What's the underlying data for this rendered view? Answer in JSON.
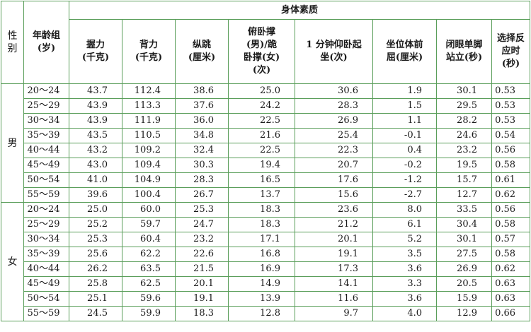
{
  "table": {
    "group_header": "身体素质",
    "sex_header": "性\n别",
    "age_header": "年龄组\n(岁)",
    "columns": [
      "握力\n(千克)",
      "背力\n(千克)",
      "纵跳\n(厘米)",
      "俯卧撑\n(男)/跪\n卧撑(女)\n(次)",
      "1 分钟仰卧起\n坐(次)",
      "坐位体前\n屈(厘米)",
      "闭眼单脚\n站立(秒)",
      "选择反\n应时\n(秒)"
    ],
    "groups": [
      {
        "sex": "男",
        "rows": [
          {
            "age": "20～24",
            "values": [
              "43.7",
              "112.4",
              "38.6",
              "25.0",
              "30.6",
              "1.9",
              "30.1",
              "0.53"
            ]
          },
          {
            "age": "25～29",
            "values": [
              "43.9",
              "113.3",
              "37.6",
              "24.2",
              "28.3",
              "1.5",
              "29.5",
              "0.53"
            ]
          },
          {
            "age": "30～34",
            "values": [
              "43.9",
              "111.9",
              "36.0",
              "22.5",
              "26.9",
              "1.1",
              "28.2",
              "0.53"
            ]
          },
          {
            "age": "35～39",
            "values": [
              "43.5",
              "110.5",
              "34.8",
              "21.6",
              "25.4",
              "-0.1",
              "24.6",
              "0.54"
            ]
          },
          {
            "age": "40～44",
            "values": [
              "43.2",
              "109.2",
              "32.4",
              "22.5",
              "22.3",
              "0.4",
              "23.2",
              "0.56"
            ]
          },
          {
            "age": "45～49",
            "values": [
              "43.0",
              "109.4",
              "30.3",
              "19.4",
              "20.7",
              "-0.2",
              "19.5",
              "0.58"
            ]
          },
          {
            "age": "50～54",
            "values": [
              "41.0",
              "104.9",
              "28.3",
              "16.5",
              "17.6",
              "-1.2",
              "15.7",
              "0.61"
            ]
          },
          {
            "age": "55～59",
            "values": [
              "39.6",
              "100.4",
              "26.7",
              "13.7",
              "15.6",
              "-2.7",
              "12.7",
              "0.62"
            ]
          }
        ]
      },
      {
        "sex": "女",
        "rows": [
          {
            "age": "20～24",
            "values": [
              "25.0",
              "60.0",
              "25.3",
              "18.3",
              "23.6",
              "8.0",
              "33.5",
              "0.56"
            ]
          },
          {
            "age": "25～29",
            "values": [
              "25.2",
              "59.7",
              "24.7",
              "18.3",
              "21.2",
              "6.1",
              "30.4",
              "0.58"
            ]
          },
          {
            "age": "30～34",
            "values": [
              "25.3",
              "60.4",
              "23.2",
              "17.1",
              "20.1",
              "5.2",
              "30.1",
              "0.57"
            ]
          },
          {
            "age": "35～39",
            "values": [
              "25.6",
              "62.2",
              "22.6",
              "16.8",
              "19.1",
              "3.5",
              "27.5",
              "0.58"
            ]
          },
          {
            "age": "40～44",
            "values": [
              "26.2",
              "63.5",
              "21.5",
              "16.9",
              "17.3",
              "3.6",
              "26.9",
              "0.62"
            ]
          },
          {
            "age": "45～49",
            "values": [
              "25.8",
              "62.5",
              "20.1",
              "14.9",
              "14.1",
              "3.3",
              "20.5",
              "0.63"
            ]
          },
          {
            "age": "50～54",
            "values": [
              "25.1",
              "59.6",
              "19.1",
              "13.9",
              "11.6",
              "3.6",
              "15.9",
              "0.63"
            ]
          },
          {
            "age": "55～59",
            "values": [
              "24.5",
              "59.9",
              "18.3",
              "12.8",
              "9.7",
              "4.0",
              "12.9",
              "0.66"
            ]
          }
        ]
      }
    ]
  }
}
